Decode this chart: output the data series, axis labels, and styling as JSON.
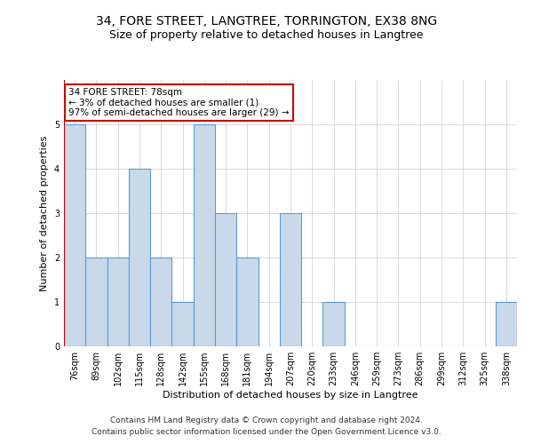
{
  "title": "34, FORE STREET, LANGTREE, TORRINGTON, EX38 8NG",
  "subtitle": "Size of property relative to detached houses in Langtree",
  "xlabel": "Distribution of detached houses by size in Langtree",
  "ylabel": "Number of detached properties",
  "categories": [
    "76sqm",
    "89sqm",
    "102sqm",
    "115sqm",
    "128sqm",
    "142sqm",
    "155sqm",
    "168sqm",
    "181sqm",
    "194sqm",
    "207sqm",
    "220sqm",
    "233sqm",
    "246sqm",
    "259sqm",
    "273sqm",
    "286sqm",
    "299sqm",
    "312sqm",
    "325sqm",
    "338sqm"
  ],
  "values": [
    5,
    2,
    2,
    4,
    2,
    1,
    5,
    3,
    2,
    0,
    3,
    0,
    1,
    0,
    0,
    0,
    0,
    0,
    0,
    0,
    1
  ],
  "bar_color": "#c9d9ea",
  "bar_edge_color": "#5b9bd5",
  "highlight_line_color": "#cc0000",
  "annotation_text": "34 FORE STREET: 78sqm\n← 3% of detached houses are smaller (1)\n97% of semi-detached houses are larger (29) →",
  "annotation_box_color": "#ffffff",
  "annotation_box_edge_color": "#cc0000",
  "ylim": [
    0,
    6
  ],
  "yticks": [
    0,
    1,
    2,
    3,
    4,
    5,
    6
  ],
  "footer_line1": "Contains HM Land Registry data © Crown copyright and database right 2024.",
  "footer_line2": "Contains public sector information licensed under the Open Government Licence v3.0.",
  "background_color": "#ffffff",
  "grid_color": "#cccccc",
  "title_fontsize": 10,
  "subtitle_fontsize": 9,
  "axis_label_fontsize": 8,
  "tick_fontsize": 7,
  "footer_fontsize": 6.5
}
